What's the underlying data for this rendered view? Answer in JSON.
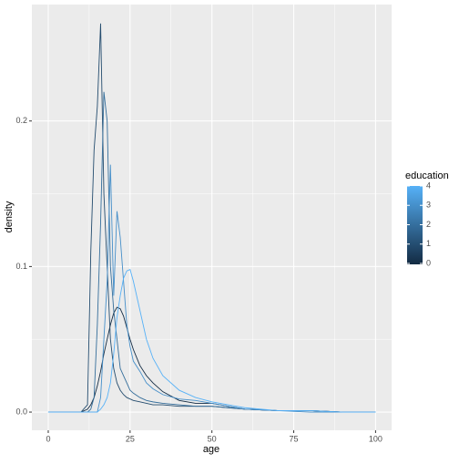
{
  "chart_data": {
    "type": "line",
    "x_label": "age",
    "y_label": "density",
    "x": [
      0,
      10,
      12,
      13,
      14,
      15,
      16,
      17,
      18,
      19,
      20,
      21,
      22,
      23,
      24,
      25,
      26,
      28,
      30,
      32,
      35,
      40,
      45,
      50,
      55,
      60,
      70,
      80,
      90,
      100
    ],
    "series": [
      {
        "color": "#132B43",
        "values": [
          0,
          0,
          0.002,
          0.005,
          0.01,
          0.018,
          0.028,
          0.04,
          0.05,
          0.06,
          0.068,
          0.072,
          0.071,
          0.066,
          0.058,
          0.05,
          0.043,
          0.032,
          0.025,
          0.02,
          0.014,
          0.008,
          0.006,
          0.006,
          0.004,
          0.002,
          0.001,
          0.001,
          0,
          0
        ]
      },
      {
        "color": "#244C6E",
        "values": [
          0,
          0,
          0.005,
          0.11,
          0.18,
          0.21,
          0.267,
          0.15,
          0.1,
          0.05,
          0.03,
          0.02,
          0.015,
          0.012,
          0.01,
          0.009,
          0.008,
          0.007,
          0.006,
          0.005,
          0.005,
          0.004,
          0.004,
          0.004,
          0.003,
          0.002,
          0.001,
          0.001,
          0,
          0
        ]
      },
      {
        "color": "#356E9B",
        "values": [
          0,
          0,
          0,
          0.002,
          0.01,
          0.06,
          0.13,
          0.22,
          0.2,
          0.1,
          0.07,
          0.05,
          0.03,
          0.025,
          0.02,
          0.015,
          0.013,
          0.01,
          0.008,
          0.007,
          0.006,
          0.005,
          0.004,
          0.004,
          0.003,
          0.002,
          0.001,
          0.001,
          0,
          0
        ]
      },
      {
        "color": "#468FC9",
        "values": [
          0,
          0,
          0,
          0,
          0,
          0,
          0.01,
          0.05,
          0.09,
          0.17,
          0.08,
          0.138,
          0.12,
          0.09,
          0.06,
          0.045,
          0.035,
          0.028,
          0.02,
          0.016,
          0.012,
          0.009,
          0.008,
          0.006,
          0.004,
          0.002,
          0.001,
          0,
          0,
          0
        ]
      },
      {
        "color": "#56B1F7",
        "values": [
          0,
          0,
          0,
          0,
          0,
          0,
          0.002,
          0.005,
          0.01,
          0.02,
          0.04,
          0.065,
          0.08,
          0.092,
          0.097,
          0.098,
          0.09,
          0.07,
          0.05,
          0.037,
          0.025,
          0.015,
          0.01,
          0.007,
          0.005,
          0.003,
          0.001,
          0.001,
          0,
          0
        ]
      }
    ],
    "xlim": [
      -5,
      104.9
    ],
    "xticks": [
      0,
      25,
      50,
      75,
      100
    ],
    "ylim": [
      -0.0125,
      0.28
    ],
    "yticks": [
      {
        "value": 0,
        "label": "0.0"
      },
      {
        "value": 0.1,
        "label": "0.1"
      },
      {
        "value": 0.2,
        "label": "0.2"
      }
    ],
    "grid": true,
    "legend": {
      "title": "education",
      "ticks": [
        0,
        1,
        2,
        3,
        4
      ],
      "low_color": "#132B43",
      "high_color": "#56B1F7",
      "position": "right"
    }
  }
}
